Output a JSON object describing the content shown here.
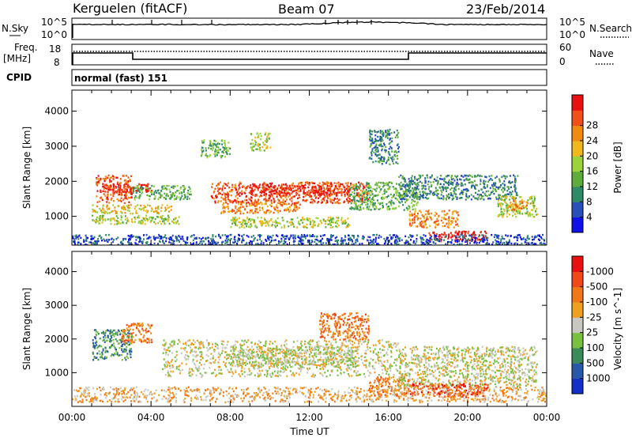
{
  "header": {
    "radar": "Kerguelen (fitACF)",
    "beam": "Beam 07",
    "date": "23/Feb/2014"
  },
  "summary_panels": {
    "sky": {
      "left_label": "N.Sky",
      "right_label": "N.Search",
      "left_ticks": [
        "10^5",
        "10^0"
      ],
      "right_ticks": [
        "10^5",
        "10^0"
      ]
    },
    "freq": {
      "left_label_line1": "Freq.",
      "left_label_line2": "[MHz]",
      "right_label": "Nave",
      "left_ticks": [
        "18",
        "8"
      ],
      "right_ticks": [
        "60",
        "0"
      ]
    },
    "cpid": {
      "label": "CPID",
      "value": "normal (fast) 151"
    }
  },
  "chart_data": [
    {
      "type": "heatmap",
      "name": "power",
      "ylabel": "Slant Range [km]",
      "xlabel": "",
      "xlim": [
        0,
        24
      ],
      "ylim": [
        180,
        4600
      ],
      "yticks": [
        1000,
        2000,
        3000,
        4000
      ],
      "colorbar": {
        "label": "Power [dB]",
        "ticks": [
          "4",
          "8",
          "12",
          "16",
          "20",
          "24",
          "28"
        ],
        "colors": [
          "#1010e8",
          "#2850b8",
          "#2f8a68",
          "#5eac3c",
          "#9bd43a",
          "#f0b81c",
          "#f08a10",
          "#f0501a",
          "#e81010"
        ]
      },
      "scatter_regions": [
        {
          "x": [
            1.2,
            3.0
          ],
          "y": [
            1400,
            2200
          ],
          "level": 7
        },
        {
          "x": [
            1.5,
            4.0
          ],
          "y": [
            1700,
            1950
          ],
          "level": 8
        },
        {
          "x": [
            1.0,
            5.5
          ],
          "y": [
            800,
            1050
          ],
          "level": 4
        },
        {
          "x": [
            1.0,
            5.0
          ],
          "y": [
            1100,
            1350
          ],
          "level": 5
        },
        {
          "x": [
            3.0,
            6.0
          ],
          "y": [
            1500,
            1900
          ],
          "level": 3
        },
        {
          "x": [
            7.0,
            15.0
          ],
          "y": [
            1400,
            2000
          ],
          "level": 7
        },
        {
          "x": [
            9.0,
            14.0
          ],
          "y": [
            1600,
            1900
          ],
          "level": 8
        },
        {
          "x": [
            7.5,
            11.5
          ],
          "y": [
            1100,
            1400
          ],
          "level": 6
        },
        {
          "x": [
            8.0,
            14.0
          ],
          "y": [
            700,
            1000
          ],
          "level": 4
        },
        {
          "x": [
            14.0,
            17.5
          ],
          "y": [
            1200,
            2000
          ],
          "level": 3
        },
        {
          "x": [
            15.0,
            16.5
          ],
          "y": [
            2500,
            3500
          ],
          "level": 2
        },
        {
          "x": [
            16.5,
            22.5
          ],
          "y": [
            1500,
            2200
          ],
          "level": 2
        },
        {
          "x": [
            17.0,
            19.5
          ],
          "y": [
            700,
            1200
          ],
          "level": 6
        },
        {
          "x": [
            18.0,
            21.0
          ],
          "y": [
            300,
            600
          ],
          "level": 8
        },
        {
          "x": [
            21.5,
            23.5
          ],
          "y": [
            1000,
            1600
          ],
          "level": 4
        },
        {
          "x": [
            22.0,
            23.0
          ],
          "y": [
            1200,
            1500
          ],
          "level": 6
        },
        {
          "x": [
            0.0,
            24.0
          ],
          "y": [
            200,
            500
          ],
          "level": 1
        },
        {
          "x": [
            6.5,
            8.0
          ],
          "y": [
            2700,
            3200
          ],
          "level": 3
        },
        {
          "x": [
            9.0,
            10.0
          ],
          "y": [
            2900,
            3400
          ],
          "level": 4
        }
      ]
    },
    {
      "type": "heatmap",
      "name": "velocity",
      "ylabel": "Slant Range [km]",
      "xlabel": "Time UT",
      "xlim": [
        0,
        24
      ],
      "ylim": [
        0,
        4600
      ],
      "yticks": [
        1000,
        2000,
        3000,
        4000
      ],
      "xticks": [
        "00:00",
        "04:00",
        "08:00",
        "12:00",
        "16:00",
        "20:00",
        "00:00"
      ],
      "colorbar": {
        "label": "Velocity [m s^-1]",
        "ticks": [
          "1000",
          "500",
          "100",
          "25",
          "-25",
          "-100",
          "-500",
          "-1000"
        ],
        "colors": [
          "#1030c8",
          "#2858a8",
          "#3a8a5a",
          "#78c040",
          "#c8c8c0",
          "#f0a020",
          "#f07818",
          "#f04818",
          "#e81010"
        ]
      },
      "scatter_regions": [
        {
          "x": [
            1.0,
            3.0
          ],
          "y": [
            1400,
            2300
          ],
          "level": 2
        },
        {
          "x": [
            2.5,
            4.0
          ],
          "y": [
            1900,
            2500
          ],
          "level": 6
        },
        {
          "x": [
            4.5,
            16.5
          ],
          "y": [
            900,
            2000
          ],
          "level": 4
        },
        {
          "x": [
            8.0,
            14.5
          ],
          "y": [
            1200,
            1800
          ],
          "level": 4
        },
        {
          "x": [
            12.5,
            15.0
          ],
          "y": [
            2000,
            2800
          ],
          "level": 6
        },
        {
          "x": [
            15.0,
            17.0
          ],
          "y": [
            300,
            900
          ],
          "level": 6
        },
        {
          "x": [
            16.5,
            23.5
          ],
          "y": [
            600,
            1800
          ],
          "level": 4
        },
        {
          "x": [
            17.0,
            21.0
          ],
          "y": [
            300,
            700
          ],
          "level": 7
        },
        {
          "x": [
            0.0,
            24.0
          ],
          "y": [
            150,
            600
          ],
          "level": 5
        }
      ]
    }
  ]
}
